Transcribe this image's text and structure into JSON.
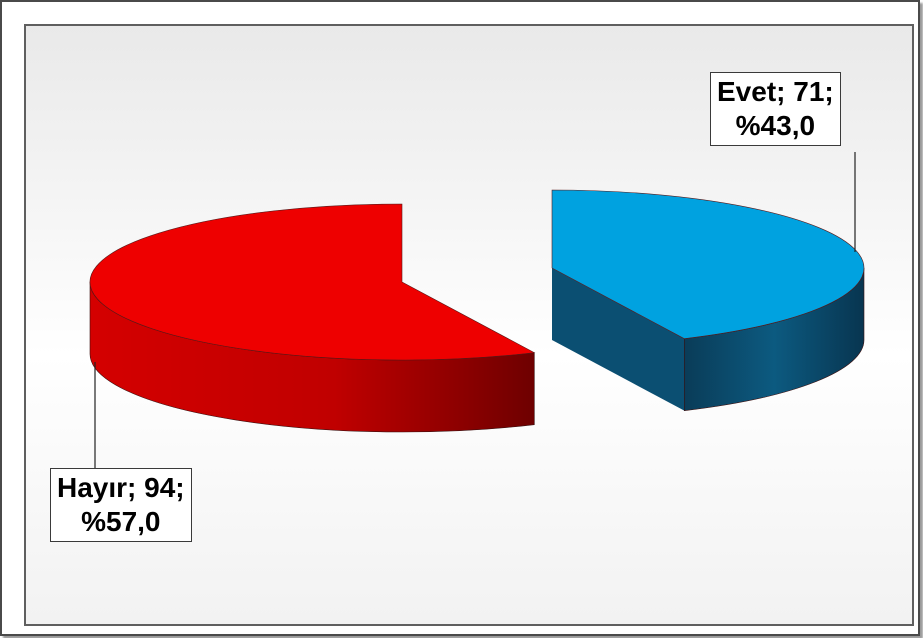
{
  "chart_data": {
    "type": "pie",
    "style": "3d-exploded",
    "title": "",
    "slices": [
      {
        "category": "Evet",
        "value": 71,
        "percent": "%43,0",
        "label_line1": "Evet; 71;",
        "label_line2": "%43,0",
        "color": "#00a2e0",
        "side_color": "#0a4d6e"
      },
      {
        "category": "Hayır",
        "value": 94,
        "percent": "%57,0",
        "label_line1": "Hayır; 94;",
        "label_line2": "%57,0",
        "color": "#ee0000",
        "side_color": "#b30000"
      }
    ]
  }
}
